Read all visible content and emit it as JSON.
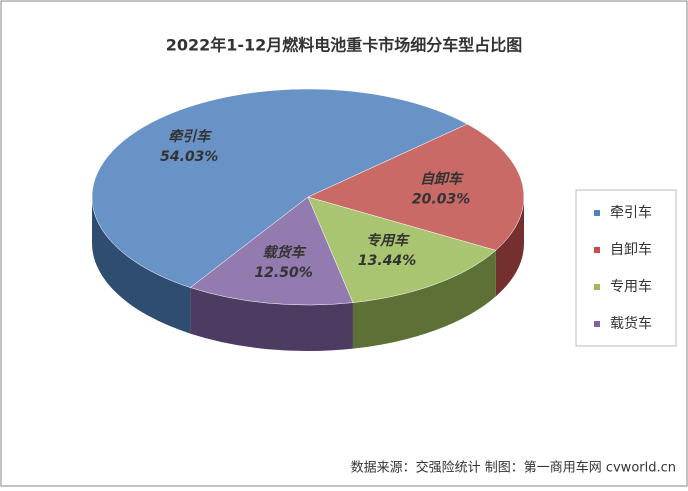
{
  "chart_data": {
    "type": "pie",
    "title": "2022年1-12月燃料电池重卡市场细分车型占比图",
    "categories": [
      "牵引车",
      "自卸车",
      "专用车",
      "载货车"
    ],
    "values": [
      54.03,
      20.03,
      13.44,
      12.5
    ],
    "value_labels": [
      "54.03%",
      "20.03%",
      "13.44%",
      "12.50%"
    ],
    "colors": [
      "#4f81bd",
      "#c0504d",
      "#9bbb59",
      "#8064a2"
    ],
    "legend": "right",
    "source": "数据来源：交强险统计   制图：第一商用车网 cvworld.cn"
  }
}
